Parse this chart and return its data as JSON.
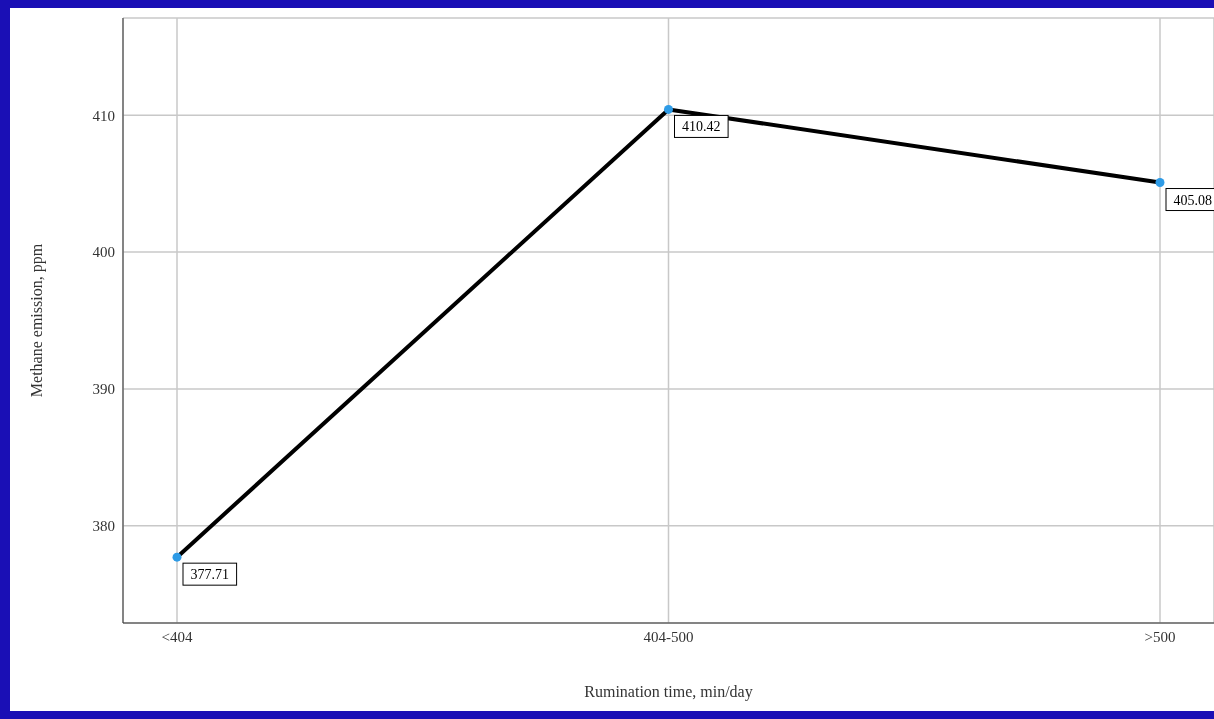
{
  "chart_data": {
    "type": "line",
    "xlabel": "Rumination time, min/day",
    "ylabel": "Methane emission, ppm",
    "categories": [
      "<404",
      "404-500",
      ">500"
    ],
    "series": [
      {
        "color": "#000000",
        "values": [
          377.71,
          410.42,
          405.08
        ]
      }
    ],
    "ylim": [
      372.9,
      417.1
    ],
    "yticks": [
      380,
      390,
      400,
      410
    ],
    "grid": true,
    "marker": "circle",
    "line_style": "solid",
    "data_labels": true
  }
}
